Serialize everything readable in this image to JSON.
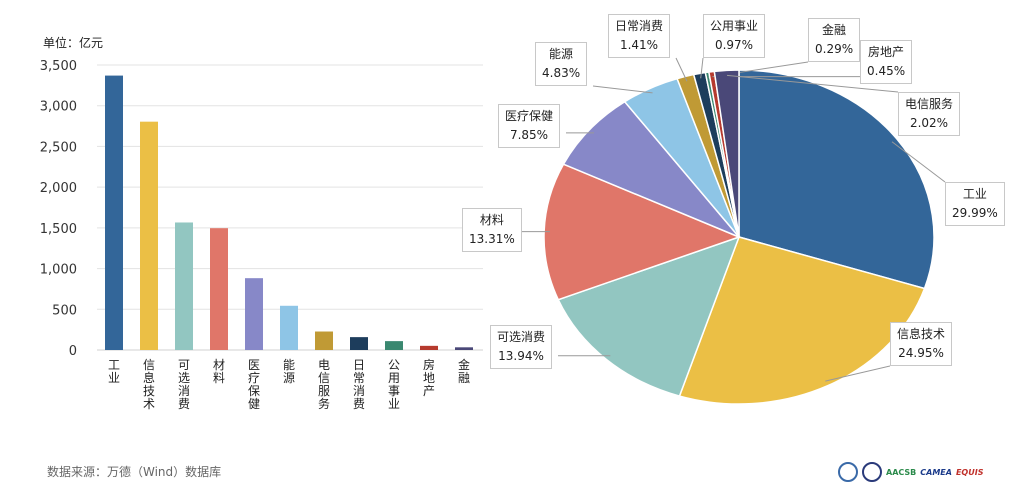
{
  "chart_data": [
    {
      "type": "bar",
      "ylabel": "单位：亿元",
      "ylim": [
        0,
        3500
      ],
      "yticks": [
        "0",
        "500",
        "1,000",
        "1,500",
        "2,000",
        "2,500",
        "3,000",
        "3,500"
      ],
      "grid": true,
      "categories": [
        "工业",
        "信息技术",
        "可选消费",
        "材料",
        "医疗保健",
        "能源",
        "电信服务",
        "日常消费",
        "公用事业",
        "房地产",
        "金融"
      ],
      "values": [
        3370,
        2804,
        1566,
        1496,
        882,
        543,
        227,
        158,
        109,
        51,
        33
      ],
      "colors": [
        "#336699",
        "#EBBF45",
        "#92C6C1",
        "#E07669",
        "#8788C8",
        "#8EC5E6",
        "#C09A35",
        "#1D3D5C",
        "#3A8870",
        "#B63A2E",
        "#4A4878"
      ]
    },
    {
      "type": "pie",
      "categories": [
        "工业",
        "信息技术",
        "可选消费",
        "材料",
        "医疗保健",
        "能源",
        "日常消费",
        "公用事业",
        "金融",
        "房地产",
        "电信服务"
      ],
      "labels": [
        "29.99%",
        "24.95%",
        "13.94%",
        "13.31%",
        "7.85%",
        "4.83%",
        "1.41%",
        "0.97%",
        "0.29%",
        "0.45%",
        "2.02%"
      ],
      "values": [
        29.99,
        24.95,
        13.94,
        13.31,
        7.85,
        4.83,
        1.41,
        0.97,
        0.29,
        0.45,
        2.02
      ],
      "colors": [
        "#336699",
        "#EBBF45",
        "#92C6C1",
        "#E07669",
        "#8788C8",
        "#8EC5E6",
        "#C09A35",
        "#1D3D5C",
        "#3A8870",
        "#B63A2E",
        "#4A4878"
      ]
    }
  ],
  "footer": {
    "source": "数据来源：万德（Wind）数据库",
    "logos": [
      "AACSB",
      "CAMEA",
      "EQUIS"
    ]
  }
}
